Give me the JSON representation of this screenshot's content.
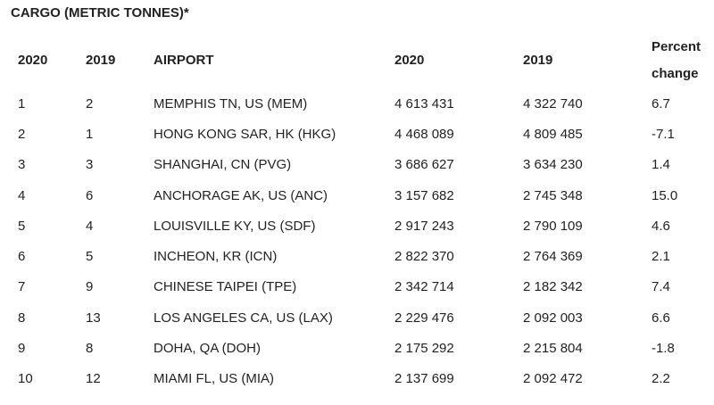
{
  "title": "CARGO (METRIC TONNES)*",
  "headers": {
    "rank_2020": "2020",
    "rank_2019": "2019",
    "airport": "AIRPORT",
    "value_2020": "2020",
    "value_2019": "2019",
    "pct_line1": "Percent",
    "pct_line2": "change"
  },
  "rows": [
    {
      "rank_2020": "1",
      "rank_2019": "2",
      "airport": "MEMPHIS TN, US (MEM)",
      "value_2020": "4 613 431",
      "value_2019": "4 322 740",
      "pct": "6.7"
    },
    {
      "rank_2020": "2",
      "rank_2019": "1",
      "airport": "HONG KONG SAR, HK (HKG)",
      "value_2020": "4 468 089",
      "value_2019": "4 809 485",
      "pct": "-7.1"
    },
    {
      "rank_2020": "3",
      "rank_2019": "3",
      "airport": "SHANGHAI, CN (PVG)",
      "value_2020": "3 686 627",
      "value_2019": "3 634 230",
      "pct": "1.4"
    },
    {
      "rank_2020": "4",
      "rank_2019": "6",
      "airport": "ANCHORAGE AK, US (ANC)",
      "value_2020": "3 157 682",
      "value_2019": "2 745 348",
      "pct": "15.0"
    },
    {
      "rank_2020": "5",
      "rank_2019": "4",
      "airport": "LOUISVILLE KY, US (SDF)",
      "value_2020": "2 917 243",
      "value_2019": "2 790 109",
      "pct": "4.6"
    },
    {
      "rank_2020": "6",
      "rank_2019": "5",
      "airport": "INCHEON, KR (ICN)",
      "value_2020": "2 822 370",
      "value_2019": "2 764 369",
      "pct": "2.1"
    },
    {
      "rank_2020": "7",
      "rank_2019": "9",
      "airport": "CHINESE TAIPEI (TPE)",
      "value_2020": "2 342 714",
      "value_2019": "2 182 342",
      "pct": "7.4"
    },
    {
      "rank_2020": "8",
      "rank_2019": "13",
      "airport": "LOS ANGELES CA, US (LAX)",
      "value_2020": "2 229 476",
      "value_2019": "2 092 003",
      "pct": "6.6"
    },
    {
      "rank_2020": "9",
      "rank_2019": "8",
      "airport": "DOHA, QA (DOH)",
      "value_2020": "2 175 292",
      "value_2019": "2 215 804",
      "pct": "-1.8"
    },
    {
      "rank_2020": "10",
      "rank_2019": "12",
      "airport": "MIAMI FL, US (MIA)",
      "value_2020": "2 137 699",
      "value_2019": "2 092 472",
      "pct": "2.2"
    }
  ]
}
